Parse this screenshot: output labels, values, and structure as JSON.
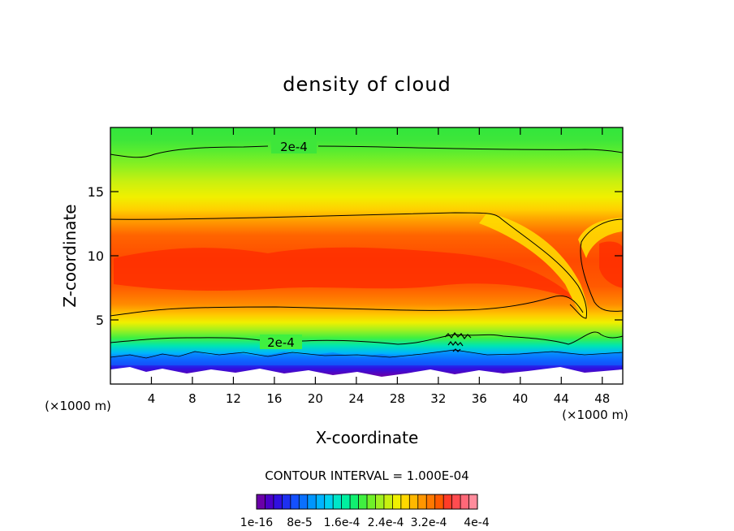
{
  "chart_data": {
    "type": "heatmap",
    "title": "density of cloud",
    "xlabel": "X-coordinate",
    "ylabel": "Z-coordinate",
    "x_unit_left": "(×1000 m)",
    "x_unit_right": "(×1000 m)",
    "xlim": [
      0,
      50
    ],
    "ylim": [
      0,
      20
    ],
    "x_ticks": [
      4,
      8,
      12,
      16,
      20,
      24,
      28,
      32,
      36,
      40,
      44,
      48
    ],
    "y_ticks": [
      5,
      10,
      15
    ],
    "contour_interval_text": "CONTOUR INTERVAL = 1.000E-04",
    "contour_labels": [
      {
        "text": "2e-4",
        "x": 17.5,
        "z": 18.4
      },
      {
        "text": "2e-4",
        "x": 16.0,
        "z": 3.4
      }
    ],
    "colorbar": {
      "colors": [
        "#6a00a8",
        "#4b00c8",
        "#3010e0",
        "#1e30f0",
        "#1450ff",
        "#0a70ff",
        "#0096ff",
        "#00b4ff",
        "#00d2f0",
        "#00e6c8",
        "#00f0a0",
        "#10f070",
        "#40f040",
        "#70f028",
        "#a0f020",
        "#c8f010",
        "#f0f000",
        "#ffd800",
        "#ffb800",
        "#ff9600",
        "#ff7800",
        "#ff5a00",
        "#ff3c28",
        "#ff4c50",
        "#ff6878",
        "#ff8c9c"
      ],
      "tick_labels": [
        "1e-16",
        "8e-5",
        "1.6e-4",
        "2.4e-4",
        "3.2e-4",
        "4e-4"
      ]
    }
  }
}
